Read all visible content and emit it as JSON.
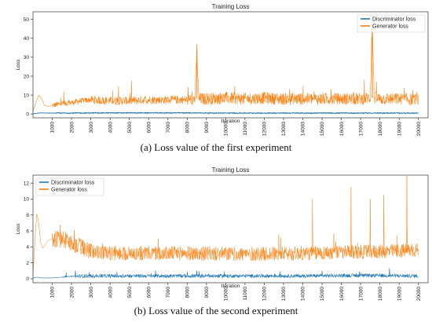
{
  "chart_data": [
    {
      "type": "line",
      "title": "Training Loss",
      "xlabel": "Iteration",
      "ylabel": "Loss",
      "caption": "(a) Loss value of the first experiment",
      "xlim": [
        0,
        20500
      ],
      "ylim": [
        -2,
        54
      ],
      "x_ticks": [
        1000,
        2000,
        3000,
        4000,
        5000,
        6000,
        7000,
        8000,
        9000,
        10000,
        11000,
        12000,
        13000,
        14000,
        15000,
        16000,
        17000,
        18000,
        19000,
        20000
      ],
      "y_ticks": [
        0,
        10,
        20,
        30,
        40,
        50
      ],
      "grid": false,
      "legend": "top-right",
      "colors": {
        "discriminator": "#1f77b4",
        "generator": "#ff7f0e"
      },
      "series": [
        {
          "name": "Discriminator loss",
          "x": [
            0,
            200,
            400,
            800,
            1000,
            2000,
            4000,
            6000,
            8000,
            10000,
            12000,
            14000,
            16000,
            18000,
            20000
          ],
          "values": [
            0.1,
            0.4,
            0.6,
            0.5,
            0.5,
            0.5,
            0.6,
            0.6,
            0.6,
            0.5,
            0.5,
            0.5,
            0.5,
            0.5,
            0.5
          ]
        },
        {
          "name": "Generator loss",
          "x": [
            0,
            150,
            300,
            450,
            600,
            800,
            1000,
            1500,
            2000,
            2500,
            3000,
            4000,
            5000,
            6000,
            7000,
            8000,
            8400,
            8500,
            8600,
            9000,
            10000,
            11000,
            12000,
            13000,
            14000,
            15000,
            16000,
            17000,
            17500,
            17600,
            17700,
            18000,
            19000,
            20000
          ],
          "values": [
            1.5,
            6,
            10,
            8,
            4.5,
            4,
            4.5,
            5.5,
            6,
            7,
            7.5,
            7,
            7,
            7.5,
            7.5,
            7.5,
            8,
            35,
            8,
            8,
            8.5,
            8,
            8.5,
            8,
            8,
            8,
            8,
            8,
            8.5,
            51,
            8.5,
            8,
            8,
            7.5
          ]
        }
      ]
    },
    {
      "type": "line",
      "title": "Training Loss",
      "xlabel": "Iteration",
      "ylabel": "Loss",
      "caption": "(b) Loss value of the second experiment",
      "xlim": [
        0,
        20500
      ],
      "ylim": [
        -0.5,
        13
      ],
      "x_ticks": [
        1000,
        2000,
        3000,
        4000,
        5000,
        6000,
        7000,
        8000,
        9000,
        10000,
        11000,
        12000,
        13000,
        14000,
        15000,
        16000,
        17000,
        18000,
        19000,
        20000
      ],
      "y_ticks": [
        0,
        2,
        4,
        6,
        8,
        10,
        12
      ],
      "grid": false,
      "legend": "top-left",
      "colors": {
        "discriminator": "#1f77b4",
        "generator": "#ff7f0e"
      },
      "series": [
        {
          "name": "Discriminator loss",
          "x": [
            0,
            200,
            400,
            800,
            1000,
            1500,
            2000,
            3000,
            4000,
            6000,
            8000,
            10000,
            12000,
            14000,
            16000,
            18000,
            20000
          ],
          "values": [
            0.1,
            0.2,
            0.1,
            0.1,
            0.1,
            0.2,
            0.3,
            0.35,
            0.35,
            0.35,
            0.35,
            0.35,
            0.35,
            0.35,
            0.4,
            0.4,
            0.35
          ],
          "spikes": [
            [
              2200,
              1.0
            ],
            [
              8500,
              1.0
            ],
            [
              15000,
              1.0
            ],
            [
              18500,
              1.3
            ]
          ]
        },
        {
          "name": "Generator loss",
          "x": [
            0,
            100,
            200,
            300,
            400,
            500,
            600,
            800,
            1000,
            1500,
            2000,
            2500,
            3000,
            4000,
            5000,
            6000,
            8000,
            10000,
            12000,
            14000,
            16000,
            18000,
            19000,
            20000
          ],
          "values": [
            0.3,
            5,
            8.2,
            7,
            4.5,
            3.8,
            4.2,
            4.8,
            5,
            5,
            4.5,
            4,
            3.5,
            3.2,
            3.2,
            3.2,
            3.2,
            3.1,
            3.1,
            3.2,
            3.3,
            3.4,
            3.5,
            3.6
          ],
          "spikes": [
            [
              14500,
              10
            ],
            [
              16500,
              11.5
            ],
            [
              17500,
              10
            ],
            [
              18200,
              10.5
            ],
            [
              19400,
              12.9
            ]
          ]
        }
      ]
    }
  ]
}
